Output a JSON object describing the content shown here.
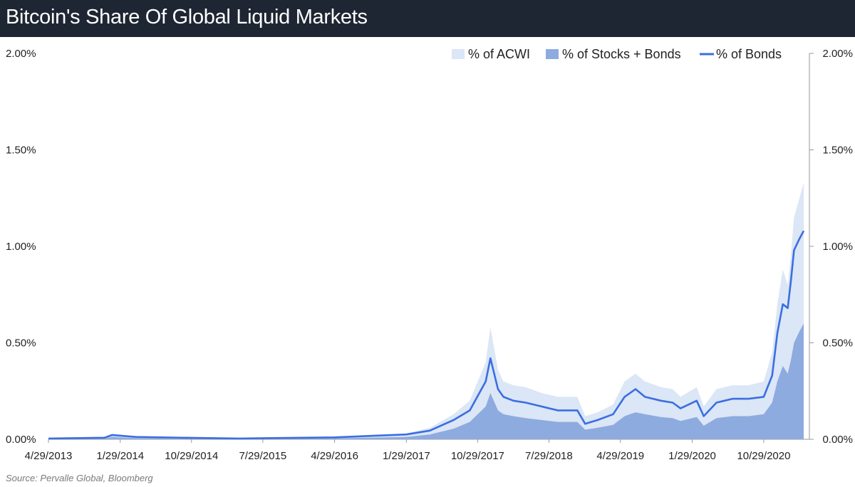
{
  "header": {
    "title": "Bitcoin's Share Of Global Liquid Markets"
  },
  "footer": {
    "source": "Source: Pervalle Global, Bloomberg"
  },
  "colors": {
    "title_bg": "#1f2633",
    "acwi_fill": "#dbe6f6",
    "stocks_bonds_fill": "#8eabdf",
    "bonds_line": "#3b6ee0"
  },
  "chart_data": {
    "type": "area",
    "title": "Bitcoin's Share Of Global Liquid Markets",
    "x_tick_labels": [
      "4/29/2013",
      "1/29/2014",
      "10/29/2014",
      "7/29/2015",
      "4/29/2016",
      "1/29/2017",
      "10/29/2017",
      "7/29/2018",
      "4/29/2019",
      "1/29/2020",
      "10/29/2020"
    ],
    "y_tick_labels": [
      "0.00%",
      "0.50%",
      "1.00%",
      "1.50%",
      "2.00%"
    ],
    "ylim": [
      0,
      2
    ],
    "y_unit": "%",
    "xlim": [
      "4/29/2013",
      "3/31/2021"
    ],
    "grid": false,
    "legend_position": "top-right",
    "series": [
      {
        "name": "% of ACWI",
        "style": "area",
        "x": [
          "4/29/2013",
          "11/29/2013",
          "12/29/2013",
          "3/29/2014",
          "9/29/2014",
          "4/29/2015",
          "4/29/2016",
          "1/29/2017",
          "4/29/2017",
          "7/29/2017",
          "9/29/2017",
          "11/29/2017",
          "12/17/2017",
          "1/15/2018",
          "2/5/2018",
          "3/15/2018",
          "5/1/2018",
          "7/1/2018",
          "9/1/2018",
          "11/15/2018",
          "12/15/2018",
          "2/1/2019",
          "4/1/2019",
          "5/15/2019",
          "6/26/2019",
          "8/1/2019",
          "10/1/2019",
          "11/15/2019",
          "12/15/2019",
          "2/15/2020",
          "3/13/2020",
          "5/1/2020",
          "7/1/2020",
          "9/1/2020",
          "10/29/2020",
          "11/30/2020",
          "12/20/2020",
          "1/10/2021",
          "1/29/2021",
          "2/10/2021",
          "2/22/2021",
          "3/15/2021",
          "3/31/2021"
        ],
        "values": [
          0.005,
          0.01,
          0.03,
          0.015,
          0.01,
          0.005,
          0.012,
          0.03,
          0.06,
          0.13,
          0.2,
          0.4,
          0.58,
          0.36,
          0.3,
          0.28,
          0.27,
          0.24,
          0.22,
          0.22,
          0.12,
          0.14,
          0.18,
          0.3,
          0.34,
          0.3,
          0.27,
          0.26,
          0.22,
          0.27,
          0.17,
          0.26,
          0.28,
          0.28,
          0.3,
          0.45,
          0.7,
          0.88,
          0.8,
          0.95,
          1.15,
          1.25,
          1.33
        ]
      },
      {
        "name": "% of Stocks + Bonds",
        "style": "area",
        "x": [
          "4/29/2013",
          "11/29/2013",
          "12/29/2013",
          "3/29/2014",
          "9/29/2014",
          "4/29/2015",
          "4/29/2016",
          "1/29/2017",
          "4/29/2017",
          "7/29/2017",
          "9/29/2017",
          "11/29/2017",
          "12/17/2017",
          "1/15/2018",
          "2/5/2018",
          "3/15/2018",
          "5/1/2018",
          "7/1/2018",
          "9/1/2018",
          "11/15/2018",
          "12/15/2018",
          "2/1/2019",
          "4/1/2019",
          "5/15/2019",
          "6/26/2019",
          "8/1/2019",
          "10/1/2019",
          "11/15/2019",
          "12/15/2019",
          "2/15/2020",
          "3/13/2020",
          "5/1/2020",
          "7/1/2020",
          "9/1/2020",
          "10/29/2020",
          "11/30/2020",
          "12/20/2020",
          "1/10/2021",
          "1/29/2021",
          "2/10/2021",
          "2/22/2021",
          "3/15/2021",
          "3/31/2021"
        ],
        "values": [
          0.002,
          0.004,
          0.012,
          0.006,
          0.004,
          0.002,
          0.005,
          0.012,
          0.025,
          0.055,
          0.09,
          0.17,
          0.24,
          0.15,
          0.13,
          0.12,
          0.11,
          0.1,
          0.09,
          0.09,
          0.05,
          0.06,
          0.075,
          0.12,
          0.14,
          0.13,
          0.115,
          0.11,
          0.095,
          0.115,
          0.07,
          0.11,
          0.12,
          0.12,
          0.13,
          0.19,
          0.3,
          0.38,
          0.34,
          0.41,
          0.5,
          0.56,
          0.6
        ]
      },
      {
        "name": "% of Bonds",
        "style": "line",
        "x": [
          "4/29/2013",
          "11/29/2013",
          "12/29/2013",
          "3/29/2014",
          "9/29/2014",
          "4/29/2015",
          "4/29/2016",
          "1/29/2017",
          "4/29/2017",
          "7/29/2017",
          "9/29/2017",
          "11/29/2017",
          "12/17/2017",
          "1/15/2018",
          "2/5/2018",
          "3/15/2018",
          "5/1/2018",
          "7/1/2018",
          "9/1/2018",
          "11/15/2018",
          "12/15/2018",
          "2/1/2019",
          "4/1/2019",
          "5/15/2019",
          "6/26/2019",
          "8/1/2019",
          "10/1/2019",
          "11/15/2019",
          "12/15/2019",
          "2/15/2020",
          "3/13/2020",
          "5/1/2020",
          "7/1/2020",
          "9/1/2020",
          "10/29/2020",
          "11/30/2020",
          "12/20/2020",
          "1/10/2021",
          "1/29/2021",
          "2/10/2021",
          "2/22/2021",
          "3/15/2021",
          "3/31/2021"
        ],
        "values": [
          0.004,
          0.008,
          0.022,
          0.012,
          0.008,
          0.004,
          0.01,
          0.025,
          0.045,
          0.1,
          0.15,
          0.3,
          0.42,
          0.26,
          0.22,
          0.2,
          0.19,
          0.17,
          0.15,
          0.15,
          0.08,
          0.1,
          0.13,
          0.22,
          0.26,
          0.22,
          0.2,
          0.19,
          0.16,
          0.2,
          0.12,
          0.19,
          0.21,
          0.21,
          0.22,
          0.33,
          0.55,
          0.7,
          0.68,
          0.82,
          0.98,
          1.04,
          1.08
        ]
      }
    ]
  }
}
